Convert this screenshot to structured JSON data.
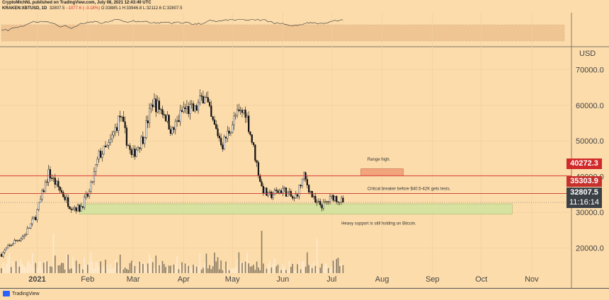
{
  "header": {
    "line1": "CryptoMichNL published on TradingView.com, July 08, 2021 12:43:49 UTC",
    "symbol": "KRAKEN:XBTUSD, 1D",
    "price": "32807.5",
    "change": "−1077.6 (−3.18%)",
    "ohlc": "O:33885.1 H:33946.8 L:32112.6 C:32807.5"
  },
  "footer": {
    "brand": "TradingView"
  },
  "colors": {
    "background": "#fcdcab",
    "up": "#ffffff",
    "down": "#111111",
    "resistance": "#d52f2f",
    "breaker": "#c7312d",
    "support_zone": "#d6e3a0",
    "range_box": "#f2a27a",
    "badge_red": "#d12a2a",
    "badge_dark": "#3b4046"
  },
  "chart_data": {
    "type": "candlestick",
    "ylabel": "USD",
    "y_ticks": [
      20000,
      30000,
      40000,
      50000,
      60000,
      70000
    ],
    "y_tick_labels": [
      "20000.0",
      "30000.0",
      "40000.0",
      "50000.0",
      "60000.0",
      "70000.0"
    ],
    "x_tick_labels": [
      "2021",
      "Feb",
      "Mar",
      "Apr",
      "May",
      "Jun",
      "Jul",
      "Aug",
      "Sep",
      "Oct",
      "Nov"
    ],
    "x_ticks": [
      "2021-01-01",
      "2021-02-01",
      "2021-03-01",
      "2021-04-01",
      "2021-05-01",
      "2021-06-01",
      "2021-07-01",
      "2021-08-01",
      "2021-09-01",
      "2021-10-01",
      "2021-11-01"
    ],
    "x_range": [
      "2020-12-10",
      "2021-11-25"
    ],
    "ylim": [
      13000,
      76000
    ],
    "price_path": [
      [
        "2020-12-10",
        18300
      ],
      [
        "2020-12-17",
        21500
      ],
      [
        "2020-12-24",
        23500
      ],
      [
        "2020-12-31",
        28900
      ],
      [
        "2021-01-08",
        41000
      ],
      [
        "2021-01-14",
        37000
      ],
      [
        "2021-01-21",
        32000
      ],
      [
        "2021-01-27",
        31000
      ],
      [
        "2021-02-02",
        35500
      ],
      [
        "2021-02-08",
        46000
      ],
      [
        "2021-02-14",
        48500
      ],
      [
        "2021-02-21",
        57000
      ],
      [
        "2021-02-28",
        45500
      ],
      [
        "2021-03-07",
        51000
      ],
      [
        "2021-03-13",
        61000
      ],
      [
        "2021-03-20",
        58000
      ],
      [
        "2021-03-25",
        52500
      ],
      [
        "2021-04-01",
        59000
      ],
      [
        "2021-04-08",
        58500
      ],
      [
        "2021-04-14",
        63500
      ],
      [
        "2021-04-18",
        56000
      ],
      [
        "2021-04-25",
        49000
      ],
      [
        "2021-05-03",
        57000
      ],
      [
        "2021-05-09",
        58500
      ],
      [
        "2021-05-13",
        50000
      ],
      [
        "2021-05-19",
        37000
      ],
      [
        "2021-05-23",
        34500
      ],
      [
        "2021-06-01",
        36500
      ],
      [
        "2021-06-08",
        33500
      ],
      [
        "2021-06-14",
        40000
      ],
      [
        "2021-06-21",
        32500
      ],
      [
        "2021-06-26",
        32000
      ],
      [
        "2021-07-02",
        34500
      ],
      [
        "2021-07-08",
        32807.5
      ]
    ],
    "volume_spikes": [
      "2021-01-11",
      "2021-05-19",
      "2021-06-22"
    ],
    "horizontal_lines": [
      {
        "label": "40272.3",
        "value": 40272.3,
        "color": "#d52f2f"
      },
      {
        "label": "35303.9",
        "value": 35303.9,
        "color": "#c7312d"
      }
    ],
    "current_price": {
      "label": "32807.5",
      "value": 32807.5,
      "countdown": "11:16:14"
    },
    "zones": [
      {
        "name": "support",
        "x0": "2021-01-27",
        "x1": "2021-10-20",
        "y0": 29500,
        "y1": 32400
      },
      {
        "name": "range-high",
        "x0": "2021-07-19",
        "x1": "2021-08-14",
        "y0": 40300,
        "y1": 42200
      }
    ],
    "annotations": [
      {
        "text": "Range high.",
        "x": "2021-07-23",
        "y": 44500
      },
      {
        "text": "Critical breaker before $40.5-42K gets tests.",
        "x": "2021-07-23",
        "y": 36300
      },
      {
        "text": "Heavy support is still holding on Bitcoin.",
        "x": "2021-07-07",
        "y": 26600
      }
    ],
    "grid": true,
    "indicator_band": {
      "y0": 30,
      "y1": 70
    }
  }
}
